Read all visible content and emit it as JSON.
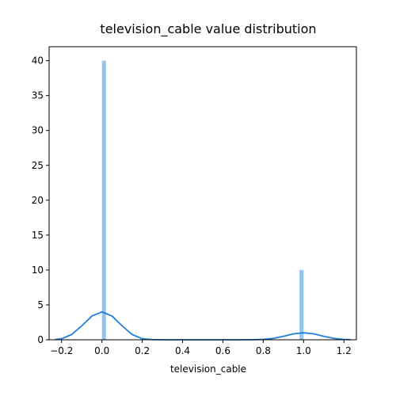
{
  "chart_data": {
    "type": "bar",
    "title": "television_cable value distribution",
    "xlabel": "television_cable",
    "ylabel": "",
    "xlim": [
      -0.262,
      1.262
    ],
    "ylim": [
      0,
      42
    ],
    "xticks": [
      -0.2,
      0.0,
      0.2,
      0.4,
      0.6,
      0.8,
      1.0,
      1.2
    ],
    "xtick_labels": [
      "−0.2",
      "0.0",
      "0.2",
      "0.4",
      "0.6",
      "0.8",
      "1.0",
      "1.2"
    ],
    "yticks": [
      0,
      5,
      10,
      15,
      20,
      25,
      30,
      35,
      40
    ],
    "ytick_labels": [
      "0",
      "5",
      "10",
      "15",
      "20",
      "25",
      "30",
      "35",
      "40"
    ],
    "grid": false,
    "histogram": {
      "bins": [
        {
          "x0": 0.0,
          "x1": 0.02,
          "value": 40
        },
        {
          "x0": 0.98,
          "x1": 1.0,
          "value": 10
        }
      ],
      "color": "#93c4f2"
    },
    "kde": {
      "color": "#1f7fdd",
      "x": [
        -0.23,
        -0.2,
        -0.15,
        -0.1,
        -0.05,
        0.0,
        0.05,
        0.1,
        0.15,
        0.2,
        0.25,
        0.3,
        0.4,
        0.5,
        0.6,
        0.7,
        0.75,
        0.8,
        0.85,
        0.9,
        0.95,
        1.0,
        1.05,
        1.1,
        1.15,
        1.2,
        1.23
      ],
      "y": [
        0.05,
        0.15,
        0.75,
        2.0,
        3.4,
        4.0,
        3.4,
        2.0,
        0.75,
        0.15,
        0.03,
        0.0,
        0.0,
        0.0,
        0.0,
        0.0,
        0.01,
        0.05,
        0.2,
        0.5,
        0.85,
        1.0,
        0.85,
        0.5,
        0.2,
        0.05,
        0.02
      ]
    }
  }
}
